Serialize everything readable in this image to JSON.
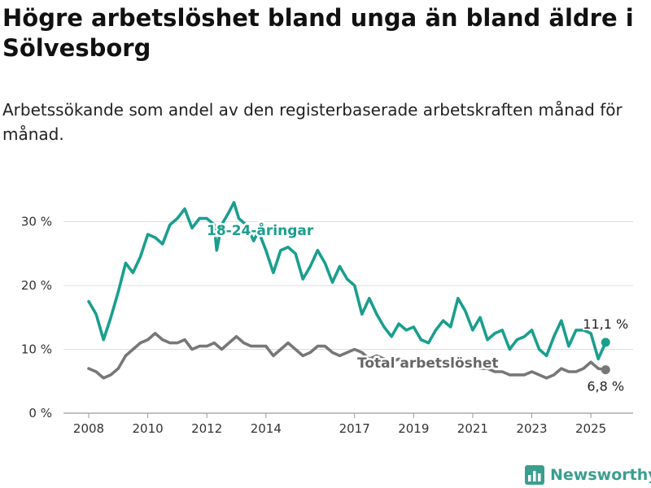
{
  "title": "Högre arbetslöshet bland unga än bland äldre i Sölvesborg",
  "subtitle": "Arbetssökande som andel av den registerbaserade arbetskraften månad för månad.",
  "brand": {
    "name": "Newsworthy",
    "icon": "bar-chart-logo-icon"
  },
  "chart_data": {
    "type": "line",
    "title": "Högre arbetslöshet bland unga än bland äldre i Sölvesborg",
    "subtitle": "Arbetssökande som andel av den registerbaserade arbetskraften månad för månad.",
    "xlabel": "",
    "ylabel": "",
    "x_ticks": [
      "2008",
      "2010",
      "2012",
      "2014",
      "2017",
      "2019",
      "2021",
      "2023",
      "2025"
    ],
    "y_ticks": [
      "0 %",
      "10 %",
      "20 %",
      "30 %"
    ],
    "ylim": [
      0,
      33
    ],
    "grid": true,
    "legend": "inline labels",
    "series": [
      {
        "name": "18-24-åringar",
        "color": "#1a9e8e",
        "end_label": "11,1 %",
        "points": [
          [
            "2008-01",
            17.5
          ],
          [
            "2008-04",
            15.5
          ],
          [
            "2008-07",
            11.5
          ],
          [
            "2008-10",
            15.0
          ],
          [
            "2009-01",
            19.0
          ],
          [
            "2009-04",
            23.5
          ],
          [
            "2009-07",
            22.0
          ],
          [
            "2009-10",
            24.5
          ],
          [
            "2010-01",
            28.0
          ],
          [
            "2010-04",
            27.5
          ],
          [
            "2010-07",
            26.5
          ],
          [
            "2010-10",
            29.5
          ],
          [
            "2011-01",
            30.5
          ],
          [
            "2011-04",
            32.0
          ],
          [
            "2011-07",
            29.0
          ],
          [
            "2011-10",
            30.5
          ],
          [
            "2012-01",
            30.5
          ],
          [
            "2012-04",
            29.5
          ],
          [
            "2012-05",
            25.5
          ],
          [
            "2012-07",
            29.5
          ],
          [
            "2012-10",
            31.5
          ],
          [
            "2012-12",
            33.0
          ],
          [
            "2013-02",
            30.5
          ],
          [
            "2013-05",
            29.5
          ],
          [
            "2013-08",
            27.0
          ],
          [
            "2013-10",
            28.5
          ],
          [
            "2014-01",
            25.5
          ],
          [
            "2014-04",
            22.0
          ],
          [
            "2014-07",
            25.5
          ],
          [
            "2014-10",
            26.0
          ],
          [
            "2015-01",
            25.0
          ],
          [
            "2015-04",
            21.0
          ],
          [
            "2015-07",
            23.0
          ],
          [
            "2015-10",
            25.5
          ],
          [
            "2016-01",
            23.5
          ],
          [
            "2016-04",
            20.5
          ],
          [
            "2016-07",
            23.0
          ],
          [
            "2016-10",
            21.0
          ],
          [
            "2017-01",
            20.0
          ],
          [
            "2017-04",
            15.5
          ],
          [
            "2017-07",
            18.0
          ],
          [
            "2017-10",
            15.5
          ],
          [
            "2018-01",
            13.5
          ],
          [
            "2018-04",
            12.0
          ],
          [
            "2018-07",
            14.0
          ],
          [
            "2018-10",
            13.0
          ],
          [
            "2019-01",
            13.5
          ],
          [
            "2019-04",
            11.5
          ],
          [
            "2019-07",
            11.0
          ],
          [
            "2019-10",
            13.0
          ],
          [
            "2020-01",
            14.5
          ],
          [
            "2020-04",
            13.5
          ],
          [
            "2020-07",
            18.0
          ],
          [
            "2020-10",
            16.0
          ],
          [
            "2021-01",
            13.0
          ],
          [
            "2021-04",
            15.0
          ],
          [
            "2021-07",
            11.5
          ],
          [
            "2021-10",
            12.5
          ],
          [
            "2022-01",
            13.0
          ],
          [
            "2022-04",
            10.0
          ],
          [
            "2022-07",
            11.5
          ],
          [
            "2022-10",
            12.0
          ],
          [
            "2023-01",
            13.0
          ],
          [
            "2023-04",
            10.0
          ],
          [
            "2023-07",
            9.0
          ],
          [
            "2023-10",
            12.0
          ],
          [
            "2024-01",
            14.5
          ],
          [
            "2024-04",
            10.5
          ],
          [
            "2024-07",
            13.0
          ],
          [
            "2024-10",
            13.0
          ],
          [
            "2025-01",
            12.5
          ],
          [
            "2025-04",
            8.5
          ],
          [
            "2025-07",
            11.1
          ]
        ]
      },
      {
        "name": "Total arbetslöshet",
        "color": "#777777",
        "end_label": "6,8 %",
        "points": [
          [
            "2008-01",
            7.0
          ],
          [
            "2008-04",
            6.5
          ],
          [
            "2008-07",
            5.5
          ],
          [
            "2008-10",
            6.0
          ],
          [
            "2009-01",
            7.0
          ],
          [
            "2009-04",
            9.0
          ],
          [
            "2009-07",
            10.0
          ],
          [
            "2009-10",
            11.0
          ],
          [
            "2010-01",
            11.5
          ],
          [
            "2010-04",
            12.5
          ],
          [
            "2010-07",
            11.5
          ],
          [
            "2010-10",
            11.0
          ],
          [
            "2011-01",
            11.0
          ],
          [
            "2011-04",
            11.5
          ],
          [
            "2011-07",
            10.0
          ],
          [
            "2011-10",
            10.5
          ],
          [
            "2012-01",
            10.5
          ],
          [
            "2012-04",
            11.0
          ],
          [
            "2012-07",
            10.0
          ],
          [
            "2012-10",
            11.0
          ],
          [
            "2013-01",
            12.0
          ],
          [
            "2013-04",
            11.0
          ],
          [
            "2013-07",
            10.5
          ],
          [
            "2013-10",
            10.5
          ],
          [
            "2014-01",
            10.5
          ],
          [
            "2014-04",
            9.0
          ],
          [
            "2014-07",
            10.0
          ],
          [
            "2014-10",
            11.0
          ],
          [
            "2015-01",
            10.0
          ],
          [
            "2015-04",
            9.0
          ],
          [
            "2015-07",
            9.5
          ],
          [
            "2015-10",
            10.5
          ],
          [
            "2016-01",
            10.5
          ],
          [
            "2016-04",
            9.5
          ],
          [
            "2016-07",
            9.0
          ],
          [
            "2016-10",
            9.5
          ],
          [
            "2017-01",
            10.0
          ],
          [
            "2017-04",
            9.5
          ],
          [
            "2017-07",
            8.5
          ],
          [
            "2017-10",
            9.0
          ],
          [
            "2018-01",
            8.5
          ],
          [
            "2018-04",
            8.0
          ],
          [
            "2018-07",
            8.5
          ],
          [
            "2018-10",
            8.0
          ],
          [
            "2019-01",
            8.0
          ],
          [
            "2019-04",
            7.5
          ],
          [
            "2019-07",
            8.0
          ],
          [
            "2019-10",
            7.5
          ],
          [
            "2020-01",
            7.5
          ],
          [
            "2020-04",
            8.5
          ],
          [
            "2020-07",
            8.5
          ],
          [
            "2020-10",
            8.0
          ],
          [
            "2021-01",
            7.5
          ],
          [
            "2021-04",
            7.0
          ],
          [
            "2021-07",
            7.0
          ],
          [
            "2021-10",
            6.5
          ],
          [
            "2022-01",
            6.5
          ],
          [
            "2022-04",
            6.0
          ],
          [
            "2022-07",
            6.0
          ],
          [
            "2022-10",
            6.0
          ],
          [
            "2023-01",
            6.5
          ],
          [
            "2023-04",
            6.0
          ],
          [
            "2023-07",
            5.5
          ],
          [
            "2023-10",
            6.0
          ],
          [
            "2024-01",
            7.0
          ],
          [
            "2024-04",
            6.5
          ],
          [
            "2024-07",
            6.5
          ],
          [
            "2024-10",
            7.0
          ],
          [
            "2025-01",
            8.0
          ],
          [
            "2025-04",
            7.0
          ],
          [
            "2025-07",
            6.8
          ]
        ]
      }
    ]
  }
}
